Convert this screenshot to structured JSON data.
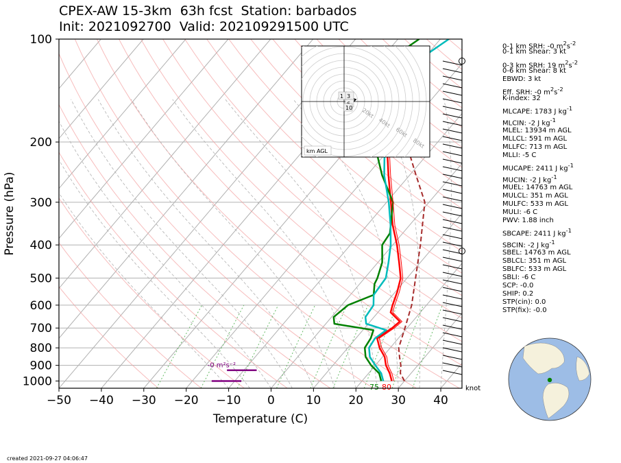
{
  "title_line1": "CPEX-AW 15-3km  63h fcst  Station: barbados",
  "title_line2": "Init: 2021092700  Valid: 202109291500 UTC",
  "created": "created 2021-09-27 04:06:47",
  "chart_data": {
    "type": "line",
    "xlabel": "Temperature (C)",
    "ylabel": "Pressure (hPa)",
    "xlim": [
      -50,
      45
    ],
    "ylim": [
      1050,
      100
    ],
    "y_scale": "log",
    "xticks": [
      -50,
      -40,
      -30,
      -20,
      -10,
      0,
      10,
      20,
      30,
      40
    ],
    "yticks": [
      100,
      200,
      300,
      400,
      500,
      600,
      700,
      800,
      900,
      1000
    ],
    "grid": true,
    "series": [
      {
        "key": "temperature",
        "color": "#ff0000",
        "points": [
          [
            27.0,
            1000
          ],
          [
            25.0,
            950
          ],
          [
            22.5,
            900
          ],
          [
            20.5,
            850
          ],
          [
            17.5,
            800
          ],
          [
            15.0,
            750
          ],
          [
            16.5,
            700
          ],
          [
            17.0,
            670
          ],
          [
            13.0,
            630
          ],
          [
            12.0,
            600
          ],
          [
            10.5,
            550
          ],
          [
            8.5,
            500
          ],
          [
            5.0,
            450
          ],
          [
            1.0,
            400
          ],
          [
            -4.0,
            350
          ],
          [
            -9.0,
            300
          ],
          [
            -15.0,
            250
          ],
          [
            -22.0,
            200
          ],
          [
            -30.0,
            150
          ],
          [
            -32.0,
            130
          ]
        ]
      },
      {
        "key": "dewpoint",
        "color": "#008000",
        "points": [
          [
            24.5,
            1000
          ],
          [
            22.5,
            950
          ],
          [
            19.0,
            900
          ],
          [
            16.0,
            850
          ],
          [
            14.0,
            800
          ],
          [
            13.5,
            750
          ],
          [
            12.5,
            710
          ],
          [
            2.0,
            680
          ],
          [
            0.5,
            650
          ],
          [
            1.5,
            600
          ],
          [
            5.5,
            560
          ],
          [
            3.5,
            520
          ],
          [
            3.0,
            500
          ],
          [
            1.0,
            450
          ],
          [
            -2.5,
            400
          ],
          [
            -3.0,
            370
          ],
          [
            -8.5,
            300
          ],
          [
            -16.5,
            250
          ],
          [
            -25.0,
            200
          ],
          [
            -33.0,
            160
          ],
          [
            -38.5,
            130
          ],
          [
            -37.0,
            110
          ],
          [
            -35.0,
            100
          ]
        ]
      },
      {
        "key": "wetbulb",
        "color": "#00bbbb",
        "points": [
          [
            25.0,
            1000
          ],
          [
            23.0,
            950
          ],
          [
            20.0,
            900
          ],
          [
            17.0,
            850
          ],
          [
            15.0,
            800
          ],
          [
            14.5,
            750
          ],
          [
            15.5,
            710
          ],
          [
            9.5,
            680
          ],
          [
            8.0,
            650
          ],
          [
            7.5,
            600
          ],
          [
            5.5,
            560
          ],
          [
            5.0,
            500
          ],
          [
            2.5,
            450
          ],
          [
            -0.5,
            400
          ],
          [
            -4.5,
            350
          ],
          [
            -9.5,
            300
          ],
          [
            -16.0,
            250
          ],
          [
            -22.5,
            200
          ],
          [
            -30.0,
            150
          ],
          [
            -31.5,
            130
          ],
          [
            -30.0,
            110
          ],
          [
            -28.0,
            100
          ]
        ]
      },
      {
        "key": "virtual_temperature",
        "color": "#ff0000",
        "points": [
          [
            27.5,
            1000
          ],
          [
            25.5,
            950
          ],
          [
            23.0,
            900
          ],
          [
            21.0,
            850
          ],
          [
            18.0,
            800
          ],
          [
            15.5,
            750
          ],
          [
            17.0,
            700
          ],
          [
            17.5,
            670
          ],
          [
            13.5,
            630
          ],
          [
            12.5,
            600
          ],
          [
            11.0,
            550
          ],
          [
            9.0,
            500
          ],
          [
            5.5,
            450
          ],
          [
            1.5,
            400
          ],
          [
            -3.5,
            350
          ],
          [
            -8.5,
            300
          ],
          [
            -14.5,
            250
          ],
          [
            -21.5,
            200
          ],
          [
            -29.5,
            150
          ]
        ]
      },
      {
        "key": "parcel",
        "color": "#a52a2a",
        "points": [
          [
            30.0,
            1000
          ],
          [
            27.5,
            950
          ],
          [
            26.0,
            900
          ],
          [
            24.0,
            850
          ],
          [
            22.0,
            800
          ],
          [
            19.5,
            700
          ],
          [
            16.5,
            600
          ],
          [
            12.0,
            500
          ],
          [
            6.5,
            400
          ],
          [
            -1.0,
            300
          ],
          [
            -8.5,
            250
          ],
          [
            -17.5,
            200
          ],
          [
            -29.0,
            150
          ],
          [
            -41.0,
            110
          ]
        ]
      }
    ],
    "surface_labels": [
      {
        "text": "75",
        "color": "#008000"
      },
      {
        "text": "80",
        "color": "#ff0000"
      }
    ],
    "srh_annotation": "-0 m²s⁻²",
    "barb_unit": "knot",
    "hodograph": {
      "rings": [
        "20kt",
        "40kt",
        "60kt",
        "80kt"
      ],
      "box_label": "km AGL",
      "height_labels": [
        "1",
        "3",
        "6",
        "10"
      ]
    }
  },
  "parameters": {
    "srh_0_1": [
      "0-1 km SRH: -0 m",
      "2",
      "s",
      "-2"
    ],
    "shear_0_1": "0-1 km Shear: 3 kt",
    "srh_0_3": [
      "0-3 km SRH: 19 m",
      "2",
      "s",
      "-2"
    ],
    "shear_0_6": "0-6 km Shear: 8 kt",
    "ebwd": "EBWD: 3 kt",
    "eff_srh": [
      "Eff. SRH: -0 m",
      "2",
      "s",
      "-2"
    ],
    "k_index": "K-index: 32",
    "mlcape": [
      "MLCAPE: 1783 J kg",
      "-1"
    ],
    "mlcin": [
      "MLCIN: -2 J kg",
      "-1"
    ],
    "mlel": "MLEL: 13934 m AGL",
    "mllcl": "MLLCL: 591 m AGL",
    "mllfc": "MLLFC: 713 m AGL",
    "mlli": "MLLI: -5 C",
    "mucape": [
      "MUCAPE: 2411 J kg",
      "-1"
    ],
    "mucin": [
      "MUCIN: -2 J kg",
      "-1"
    ],
    "muel": "MUEL: 14763 m AGL",
    "mulcl": "MULCL: 351 m AGL",
    "mulfc": "MULFC: 533 m AGL",
    "muli": "MULI: -6 C",
    "pwv": "PWV: 1.88 inch",
    "sbcape": [
      "SBCAPE: 2411 J kg",
      "-1"
    ],
    "sbcin": [
      "SBCIN: -2 J kg",
      "-1"
    ],
    "sbel": "SBEL: 14763 m AGL",
    "sblcl": "SBLCL: 351 m AGL",
    "sblfc": "SBLFC: 533 m AGL",
    "sbli": "SBLI: -6 C",
    "scp": "SCP: -0.0",
    "ship": "SHIP: 0.2",
    "stp_cin": "STP(cin): 0.0",
    "stp_fix": "STP(fix): -0.0"
  }
}
